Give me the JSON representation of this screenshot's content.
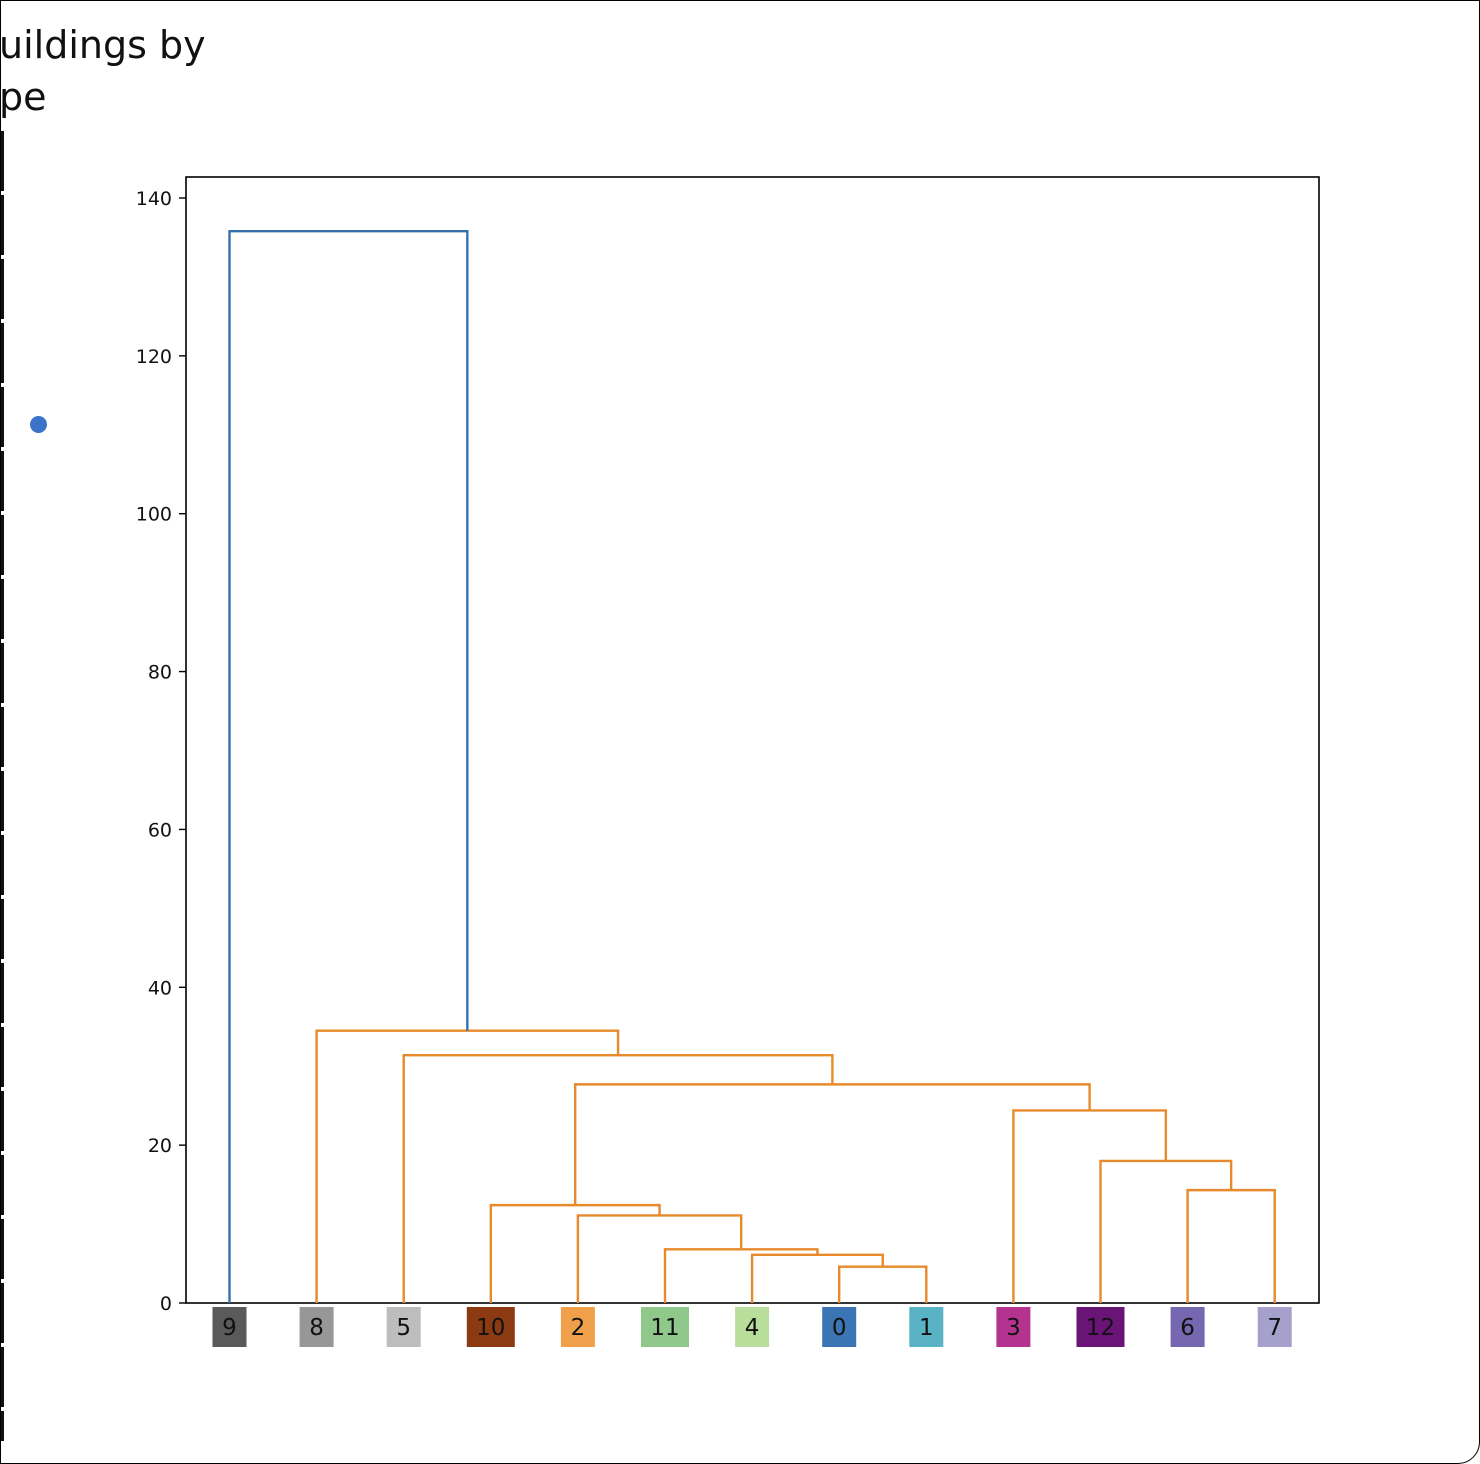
{
  "header": {
    "title": "uildings by\npe"
  },
  "marker": {
    "color": "#3a73c9"
  },
  "chart_data": {
    "type": "dendrogram",
    "title": "",
    "xlabel": "",
    "ylabel": "",
    "ylim": [
      0,
      143
    ],
    "yticks": [
      0,
      20,
      40,
      60,
      80,
      100,
      120,
      140
    ],
    "grid": false,
    "leaves": [
      {
        "label": "9",
        "color": "#5a5a5a"
      },
      {
        "label": "8",
        "color": "#979797"
      },
      {
        "label": "5",
        "color": "#bdbdbd"
      },
      {
        "label": "10",
        "color": "#8b3a12"
      },
      {
        "label": "2",
        "color": "#f0a04b"
      },
      {
        "label": "11",
        "color": "#8fc88a"
      },
      {
        "label": "4",
        "color": "#b9dd9a"
      },
      {
        "label": "0",
        "color": "#3b75b3"
      },
      {
        "label": "1",
        "color": "#5ab3c4"
      },
      {
        "label": "3",
        "color": "#b4338e"
      },
      {
        "label": "12",
        "color": "#6a1478"
      },
      {
        "label": "6",
        "color": "#7568b0"
      },
      {
        "label": "7",
        "color": "#a6a1cc"
      }
    ],
    "merges": [
      {
        "left": "0",
        "right": "1",
        "height": 4.6,
        "color": "#e8892b"
      },
      {
        "left": "4",
        "right": "(0,1)",
        "height": 6.1,
        "color": "#e8892b"
      },
      {
        "left": "11",
        "right": "(4,0,1)",
        "height": 6.8,
        "color": "#e8892b"
      },
      {
        "left": "2",
        "right": "(11,4,0,1)",
        "height": 11.1,
        "color": "#e8892b"
      },
      {
        "left": "10",
        "right": "(2,11,4,0,1)",
        "height": 12.4,
        "color": "#e8892b"
      },
      {
        "left": "6",
        "right": "7",
        "height": 14.3,
        "color": "#e8892b"
      },
      {
        "left": "12",
        "right": "(6,7)",
        "height": 18.0,
        "color": "#e8892b"
      },
      {
        "left": "3",
        "right": "(12,6,7)",
        "height": 24.4,
        "color": "#e8892b"
      },
      {
        "left": "(10,...,1)",
        "right": "(3,12,6,7)",
        "height": 27.7,
        "color": "#e8892b"
      },
      {
        "left": "5",
        "right": "(10,...,7)",
        "height": 31.4,
        "color": "#e8892b"
      },
      {
        "left": "8",
        "right": "(5,...,7)",
        "height": 34.5,
        "color": "#e8892b"
      },
      {
        "left": "9",
        "right": "(8,...,7)",
        "height": 135.8,
        "color": "#3571ad"
      }
    ],
    "link_colors": {
      "cluster": "#e8892b",
      "above_threshold": "#3571ad"
    }
  }
}
